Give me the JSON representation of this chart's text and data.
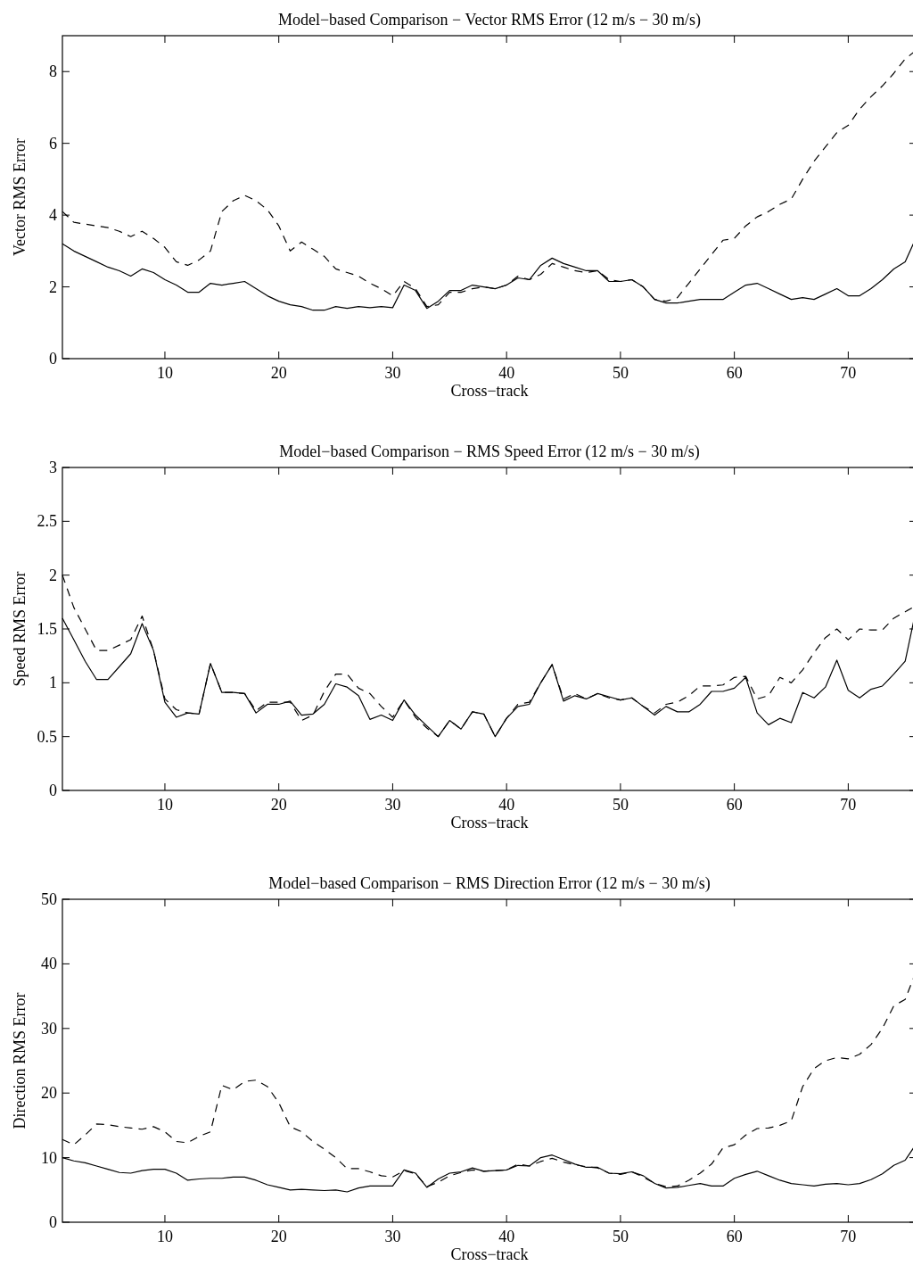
{
  "chart_data": [
    {
      "type": "line",
      "title": "Model−based Comparison − Vector RMS Error (12 m/s − 30 m/s)",
      "xlabel": "Cross−track",
      "ylabel": "Vector RMS Error",
      "x": [
        1,
        2,
        3,
        4,
        5,
        6,
        7,
        8,
        9,
        10,
        11,
        12,
        13,
        14,
        15,
        16,
        17,
        18,
        19,
        20,
        21,
        22,
        23,
        24,
        25,
        26,
        27,
        28,
        29,
        30,
        31,
        32,
        33,
        34,
        35,
        36,
        37,
        38,
        39,
        40,
        41,
        42,
        43,
        44,
        45,
        46,
        47,
        48,
        49,
        50,
        51,
        52,
        53,
        54,
        55,
        56,
        57,
        58,
        59,
        60,
        61,
        62,
        63,
        64,
        65,
        66,
        67,
        68,
        69,
        70,
        71,
        72,
        73,
        74,
        75,
        76
      ],
      "xlim": [
        1,
        76
      ],
      "xticks": [
        10,
        20,
        30,
        40,
        50,
        60,
        70
      ],
      "ylim": [
        0,
        9
      ],
      "yticks": [
        0,
        2,
        4,
        6,
        8
      ],
      "series": [
        {
          "color": "#000000",
          "line_style": "solid",
          "values": [
            3.2,
            3.0,
            2.85,
            2.7,
            2.55,
            2.45,
            2.3,
            2.5,
            2.4,
            2.2,
            2.05,
            1.85,
            1.85,
            2.1,
            2.05,
            2.1,
            2.15,
            1.95,
            1.75,
            1.6,
            1.5,
            1.45,
            1.35,
            1.35,
            1.45,
            1.4,
            1.45,
            1.42,
            1.45,
            1.42,
            2.05,
            1.9,
            1.4,
            1.6,
            1.9,
            1.9,
            2.05,
            2.0,
            1.95,
            2.05,
            2.25,
            2.2,
            2.6,
            2.8,
            2.65,
            2.55,
            2.45,
            2.45,
            2.15,
            2.15,
            2.2,
            2.0,
            1.65,
            1.55,
            1.55,
            1.6,
            1.65,
            1.65,
            1.65,
            1.85,
            2.05,
            2.1,
            1.95,
            1.8,
            1.65,
            1.7,
            1.65,
            1.8,
            1.95,
            1.75,
            1.75,
            1.95,
            2.2,
            2.5,
            2.7,
            3.4
          ]
        },
        {
          "color": "#000000",
          "line_style": "dashed",
          "values": [
            4.1,
            3.8,
            3.75,
            3.7,
            3.65,
            3.55,
            3.4,
            3.55,
            3.35,
            3.1,
            2.7,
            2.6,
            2.75,
            3.0,
            4.1,
            4.4,
            4.55,
            4.4,
            4.15,
            3.7,
            3.0,
            3.25,
            3.05,
            2.85,
            2.5,
            2.4,
            2.3,
            2.1,
            1.95,
            1.75,
            2.15,
            1.95,
            1.45,
            1.5,
            1.85,
            1.85,
            1.95,
            2.0,
            1.95,
            2.05,
            2.3,
            2.2,
            2.35,
            2.65,
            2.55,
            2.45,
            2.4,
            2.45,
            2.2,
            2.15,
            2.2,
            2.0,
            1.65,
            1.6,
            1.7,
            2.1,
            2.5,
            2.9,
            3.3,
            3.35,
            3.7,
            3.95,
            4.1,
            4.3,
            4.45,
            5.0,
            5.5,
            5.9,
            6.3,
            6.5,
            6.95,
            7.3,
            7.6,
            7.95,
            8.35,
            8.6
          ]
        }
      ]
    },
    {
      "type": "line",
      "title": "Model−based Comparison − RMS Speed Error (12 m/s − 30 m/s)",
      "xlabel": "Cross−track",
      "ylabel": "Speed RMS Error",
      "x": [
        1,
        2,
        3,
        4,
        5,
        6,
        7,
        8,
        9,
        10,
        11,
        12,
        13,
        14,
        15,
        16,
        17,
        18,
        19,
        20,
        21,
        22,
        23,
        24,
        25,
        26,
        27,
        28,
        29,
        30,
        31,
        32,
        33,
        34,
        35,
        36,
        37,
        38,
        39,
        40,
        41,
        42,
        43,
        44,
        45,
        46,
        47,
        48,
        49,
        50,
        51,
        52,
        53,
        54,
        55,
        56,
        57,
        58,
        59,
        60,
        61,
        62,
        63,
        64,
        65,
        66,
        67,
        68,
        69,
        70,
        71,
        72,
        73,
        74,
        75,
        76
      ],
      "xlim": [
        1,
        76
      ],
      "xticks": [
        10,
        20,
        30,
        40,
        50,
        60,
        70
      ],
      "ylim": [
        0,
        3
      ],
      "yticks": [
        0,
        0.5,
        1,
        1.5,
        2,
        2.5,
        3
      ],
      "series": [
        {
          "color": "#000000",
          "line_style": "solid",
          "values": [
            1.6,
            1.4,
            1.2,
            1.03,
            1.03,
            1.15,
            1.27,
            1.55,
            1.3,
            0.82,
            0.68,
            0.72,
            0.71,
            1.18,
            0.91,
            0.91,
            0.9,
            0.72,
            0.8,
            0.8,
            0.83,
            0.7,
            0.71,
            0.8,
            0.99,
            0.96,
            0.88,
            0.66,
            0.7,
            0.65,
            0.84,
            0.7,
            0.6,
            0.5,
            0.65,
            0.57,
            0.73,
            0.71,
            0.5,
            0.67,
            0.78,
            0.8,
            1.0,
            1.17,
            0.83,
            0.88,
            0.85,
            0.9,
            0.87,
            0.84,
            0.86,
            0.78,
            0.7,
            0.78,
            0.73,
            0.73,
            0.8,
            0.92,
            0.92,
            0.95,
            1.05,
            0.72,
            0.61,
            0.67,
            0.63,
            0.91,
            0.86,
            0.96,
            1.21,
            0.93,
            0.86,
            0.94,
            0.97,
            1.08,
            1.2,
            1.7
          ]
        },
        {
          "color": "#000000",
          "line_style": "dashed",
          "values": [
            2.0,
            1.7,
            1.5,
            1.3,
            1.3,
            1.35,
            1.4,
            1.62,
            1.3,
            0.85,
            0.75,
            0.72,
            0.71,
            1.18,
            0.91,
            0.91,
            0.9,
            0.74,
            0.82,
            0.82,
            0.82,
            0.65,
            0.7,
            0.92,
            1.08,
            1.08,
            0.95,
            0.9,
            0.78,
            0.68,
            0.84,
            0.68,
            0.58,
            0.5,
            0.65,
            0.57,
            0.73,
            0.71,
            0.5,
            0.67,
            0.8,
            0.82,
            1.0,
            1.17,
            0.85,
            0.9,
            0.85,
            0.9,
            0.86,
            0.84,
            0.86,
            0.78,
            0.72,
            0.8,
            0.82,
            0.88,
            0.97,
            0.97,
            0.98,
            1.05,
            1.06,
            0.85,
            0.88,
            1.05,
            1.0,
            1.12,
            1.28,
            1.42,
            1.5,
            1.4,
            1.5,
            1.49,
            1.49,
            1.6,
            1.66,
            1.72
          ]
        }
      ]
    },
    {
      "type": "line",
      "title": "Model−based Comparison − RMS Direction Error (12 m/s − 30 m/s)",
      "xlabel": "Cross−track",
      "ylabel": "Direction RMS Error",
      "x": [
        1,
        2,
        3,
        4,
        5,
        6,
        7,
        8,
        9,
        10,
        11,
        12,
        13,
        14,
        15,
        16,
        17,
        18,
        19,
        20,
        21,
        22,
        23,
        24,
        25,
        26,
        27,
        28,
        29,
        30,
        31,
        32,
        33,
        34,
        35,
        36,
        37,
        38,
        39,
        40,
        41,
        42,
        43,
        44,
        45,
        46,
        47,
        48,
        49,
        50,
        51,
        52,
        53,
        54,
        55,
        56,
        57,
        58,
        59,
        60,
        61,
        62,
        63,
        64,
        65,
        66,
        67,
        68,
        69,
        70,
        71,
        72,
        73,
        74,
        75,
        76
      ],
      "xlim": [
        1,
        76
      ],
      "xticks": [
        10,
        20,
        30,
        40,
        50,
        60,
        70
      ],
      "ylim": [
        0,
        50
      ],
      "yticks": [
        0,
        10,
        20,
        30,
        40,
        50
      ],
      "series": [
        {
          "color": "#000000",
          "line_style": "solid",
          "values": [
            10,
            9.5,
            9.2,
            8.7,
            8.2,
            7.7,
            7.6,
            8,
            8.2,
            8.2,
            7.6,
            6.5,
            6.7,
            6.8,
            6.8,
            7,
            7,
            6.5,
            5.8,
            5.4,
            5,
            5.1,
            5,
            4.9,
            5,
            4.7,
            5.3,
            5.6,
            5.6,
            5.6,
            8.1,
            7.6,
            5.4,
            6.7,
            7.6,
            7.8,
            8.4,
            7.9,
            8,
            8.1,
            8.8,
            8.7,
            10,
            10.4,
            9.7,
            9,
            8.5,
            8.5,
            7.6,
            7.5,
            7.8,
            7.2,
            6,
            5.3,
            5.4,
            5.7,
            6,
            5.6,
            5.6,
            6.8,
            7.4,
            7.9,
            7.2,
            6.5,
            6,
            5.8,
            5.6,
            5.9,
            6,
            5.8,
            6,
            6.6,
            7.5,
            8.8,
            9.6,
            12.2
          ]
        },
        {
          "color": "#000000",
          "line_style": "dashed",
          "values": [
            12.8,
            12,
            13.5,
            15.2,
            15.1,
            14.8,
            14.6,
            14.4,
            14.8,
            14,
            12.5,
            12.3,
            13.3,
            14,
            21.2,
            20.5,
            21.8,
            22,
            21,
            18.5,
            14.8,
            14,
            12.5,
            11.3,
            10,
            8.3,
            8.3,
            7.8,
            7.2,
            7,
            8,
            7.5,
            5.5,
            6.2,
            7.2,
            7.7,
            8.1,
            7.9,
            8,
            8.1,
            9,
            8.7,
            9.4,
            9.9,
            9.3,
            8.9,
            8.6,
            8.4,
            7.6,
            7.4,
            7.8,
            7,
            6,
            5.5,
            5.6,
            6.5,
            7.6,
            9,
            11.5,
            12,
            13.5,
            14.5,
            14.6,
            15,
            15.7,
            21,
            23.8,
            25,
            25.5,
            25.3,
            26,
            27.5,
            30,
            33.5,
            34.5,
            39
          ]
        }
      ]
    }
  ]
}
